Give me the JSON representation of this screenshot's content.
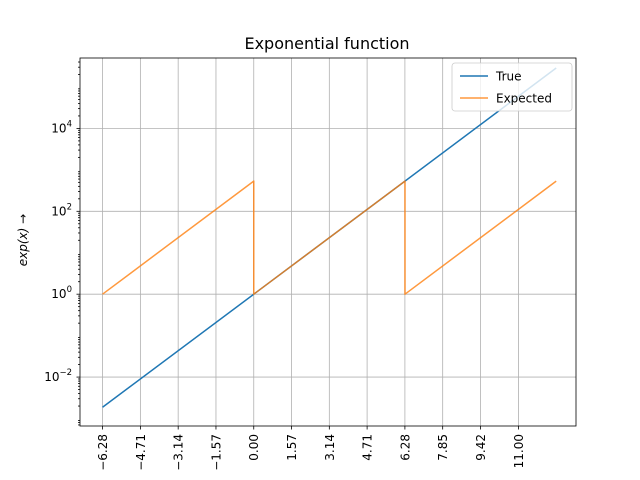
{
  "chart_data": {
    "type": "line",
    "title": "Exponential function",
    "xlabel": "",
    "ylabel": "exp(x) →",
    "yscale": "log",
    "xlim": [
      -7.219,
      13.389
    ],
    "ylim": [
      0.00066,
      500000
    ],
    "x_ticks": [
      -6.28,
      -4.71,
      -3.14,
      -1.57,
      0.0,
      1.57,
      3.14,
      4.71,
      6.28,
      7.85,
      9.42,
      11.0
    ],
    "x_tick_labels": [
      "−6.28",
      "−4.71",
      "−3.14",
      "−1.57",
      "0.00",
      "1.57",
      "3.14",
      "4.71",
      "6.28",
      "7.85",
      "9.42",
      "11.00"
    ],
    "y_ticks": [
      {
        "value": 0.01,
        "base": "10",
        "exp": "−2"
      },
      {
        "value": 1,
        "base": "10",
        "exp": "0"
      },
      {
        "value": 100,
        "base": "10",
        "exp": "2"
      },
      {
        "value": 10000,
        "base": "10",
        "exp": "4"
      }
    ],
    "grid": true,
    "legend_position": "top-right",
    "series": [
      {
        "name": "True",
        "color": "#1f77b4",
        "points": [
          [
            -6.2832,
            0.001867
          ],
          [
            12.5664,
            286751
          ]
        ]
      },
      {
        "name": "Expected",
        "color": "#ff7f0e",
        "points": [
          [
            -6.2832,
            1
          ],
          [
            -0.0001,
            535.4
          ],
          [
            0,
            1
          ],
          [
            6.2831,
            535.4
          ],
          [
            6.2832,
            1
          ],
          [
            12.5664,
            535.4
          ]
        ]
      }
    ]
  }
}
